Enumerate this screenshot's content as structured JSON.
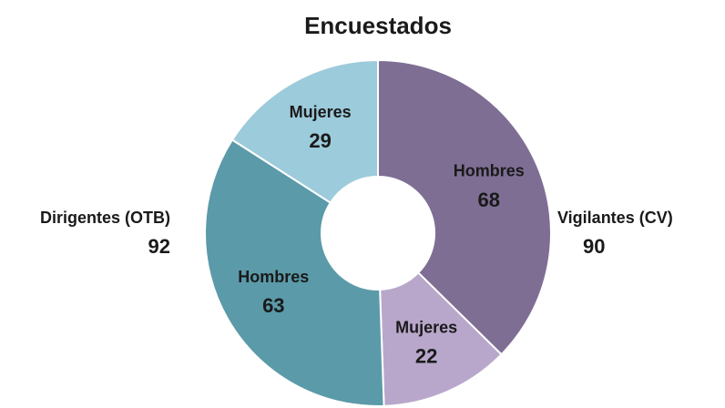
{
  "chart_data": {
    "type": "donut",
    "title": "Encuestados",
    "categories": [
      "Hombres",
      "Mujeres",
      "Hombres",
      "Mujeres"
    ],
    "values": [
      68,
      22,
      63,
      29
    ],
    "colors": [
      "#7e6e94",
      "#b8a7cb",
      "#5b9aa9",
      "#9ccbdb"
    ],
    "groups": [
      {
        "name": "Vigilantes (CV)",
        "value": 90
      },
      {
        "name": "Dirigentes (OTB)",
        "value": 92
      }
    ]
  }
}
